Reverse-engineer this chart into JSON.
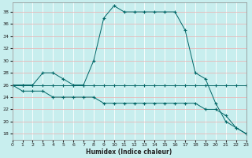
{
  "xlabel": "Humidex (Indice chaleur)",
  "bg_color": "#c8eeee",
  "grid_color_major": "#e8b8b8",
  "line_color": "#006666",
  "xlim": [
    0,
    23
  ],
  "ylim": [
    17,
    39.5
  ],
  "yticks": [
    18,
    20,
    22,
    24,
    26,
    28,
    30,
    32,
    34,
    36,
    38
  ],
  "xticks": [
    0,
    1,
    2,
    3,
    4,
    5,
    6,
    7,
    8,
    9,
    10,
    11,
    12,
    13,
    14,
    15,
    16,
    17,
    18,
    19,
    20,
    21,
    22,
    23
  ],
  "line1_x": [
    0,
    1,
    2,
    3,
    4,
    5,
    6,
    7,
    8,
    9,
    10,
    11,
    12,
    13,
    14,
    15,
    16,
    17,
    18,
    19,
    20,
    21,
    22,
    23
  ],
  "line1_y": [
    26,
    26,
    26,
    28,
    28,
    27,
    26,
    26,
    30,
    37,
    39,
    38,
    38,
    38,
    38,
    38,
    38,
    35,
    28,
    27,
    23,
    20,
    19,
    18
  ],
  "line2_x": [
    0,
    1,
    2,
    3,
    4,
    5,
    6,
    7,
    8,
    9,
    10,
    11,
    12,
    13,
    14,
    15,
    16,
    17,
    18,
    19,
    20,
    21,
    22,
    23
  ],
  "line2_y": [
    26,
    26,
    26,
    26,
    26,
    26,
    26,
    26,
    26,
    26,
    26,
    26,
    26,
    26,
    26,
    26,
    26,
    26,
    26,
    26,
    26,
    26,
    26,
    26
  ],
  "line3_x": [
    0,
    1,
    2,
    3,
    4,
    5,
    6,
    7,
    8,
    9,
    10,
    11,
    12,
    13,
    14,
    15,
    16,
    17,
    18,
    19,
    20,
    21,
    22,
    23
  ],
  "line3_y": [
    26,
    25,
    25,
    25,
    24,
    24,
    24,
    24,
    24,
    23,
    23,
    23,
    23,
    23,
    23,
    23,
    23,
    23,
    23,
    22,
    22,
    21,
    19,
    18
  ]
}
